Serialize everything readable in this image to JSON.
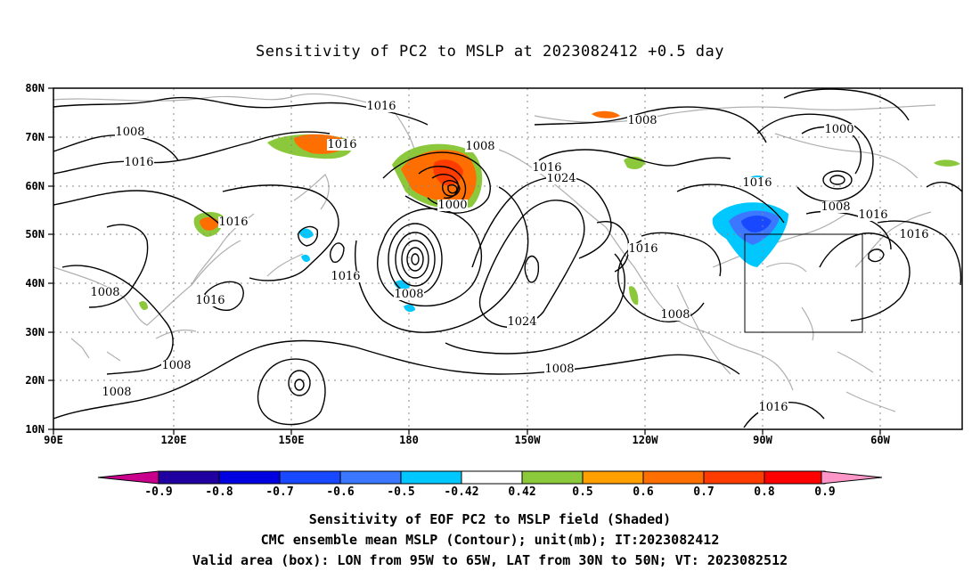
{
  "title": "Sensitivity of PC2 to MSLP at 2023082412 +0.5 day",
  "lat_labels": [
    "80N",
    "70N",
    "60N",
    "50N",
    "40N",
    "30N",
    "20N",
    "10N"
  ],
  "lon_labels": [
    "90E",
    "120E",
    "150E",
    "180",
    "150W",
    "120W",
    "90W",
    "60W"
  ],
  "contour_labels": [
    "1016",
    "1008",
    "1016",
    "1016",
    "1016",
    "1008",
    "1016",
    "1016",
    "1000",
    "1024",
    "1008",
    "1000",
    "1016",
    "1008",
    "1016",
    "1016",
    "1016",
    "1008",
    "1024",
    "1008",
    "1016",
    "1008",
    "1008",
    "1008",
    "1008",
    "1016",
    "1008"
  ],
  "colorbar": {
    "ticks": [
      "-0.9",
      "-0.8",
      "-0.7",
      "-0.6",
      "-0.5",
      "-0.42",
      "0.42",
      "0.5",
      "0.6",
      "0.7",
      "0.8",
      "0.9"
    ],
    "colors": [
      "#2000a0",
      "#0000e0",
      "#1848ff",
      "#3c78ff",
      "#00c8ff",
      "#ffffff",
      "#8cc83c",
      "#ffa000",
      "#ff6e00",
      "#ff3c00",
      "#ff0000"
    ],
    "under_color": "#c8008c",
    "over_color": "#ff96c8"
  },
  "valid_box": {
    "lon_from": "95W",
    "lon_to": "65W",
    "lat_from": "30N",
    "lat_to": "50N"
  },
  "captions": [
    "Sensitivity of EOF PC2 to MSLP field (Shaded)",
    "CMC ensemble mean MSLP (Contour); unit(mb); IT:2023082412",
    "Valid area (box): LON from 95W to 65W, LAT from 30N to 50N; VT: 2023082512"
  ]
}
